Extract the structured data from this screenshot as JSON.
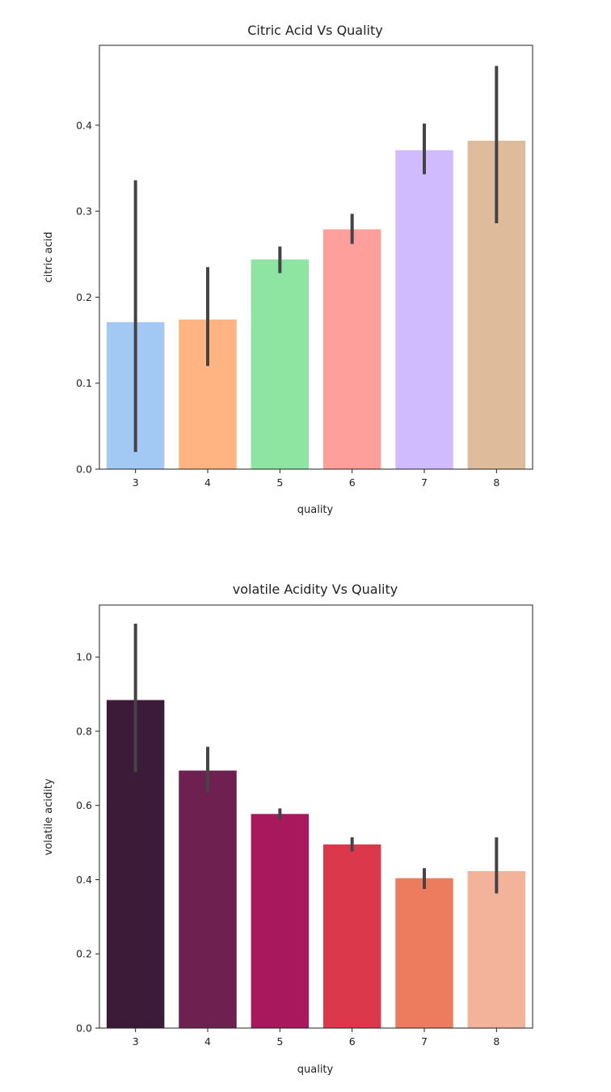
{
  "chart_data": [
    {
      "type": "bar",
      "title": "Citric Acid Vs Quality",
      "xlabel": "quality",
      "ylabel": "citric acid",
      "categories": [
        "3",
        "4",
        "5",
        "6",
        "7",
        "8"
      ],
      "values": [
        0.171,
        0.174,
        0.244,
        0.279,
        0.371,
        0.382
      ],
      "error_low": [
        0.02,
        0.12,
        0.228,
        0.262,
        0.343,
        0.286
      ],
      "error_high": [
        0.336,
        0.235,
        0.259,
        0.297,
        0.402,
        0.469
      ],
      "colors": [
        "#a1c9f4",
        "#ffb482",
        "#8de5a1",
        "#ff9f9b",
        "#d0bbff",
        "#debb9b"
      ],
      "ylim": [
        0,
        0.493
      ],
      "yticks": [
        0.0,
        0.1,
        0.2,
        0.3,
        0.4
      ],
      "ytick_labels": [
        "0.0",
        "0.1",
        "0.2",
        "0.3",
        "0.4"
      ],
      "grid": false
    },
    {
      "type": "bar",
      "title": "volatile Acidity Vs Quality",
      "xlabel": "quality",
      "ylabel": "volatile acidity",
      "categories": [
        "3",
        "4",
        "5",
        "6",
        "7",
        "8"
      ],
      "values": [
        0.884,
        0.694,
        0.577,
        0.495,
        0.404,
        0.423
      ],
      "error_low": [
        0.69,
        0.635,
        0.563,
        0.476,
        0.375,
        0.363
      ],
      "error_high": [
        1.09,
        0.758,
        0.592,
        0.514,
        0.431,
        0.514
      ],
      "colors": [
        "#3b1b38",
        "#6e2150",
        "#a7185d",
        "#dc384c",
        "#ed7b5e",
        "#f3b39a"
      ],
      "ylim": [
        0,
        1.14
      ],
      "yticks": [
        0.0,
        0.2,
        0.4,
        0.6,
        0.8,
        1.0
      ],
      "ytick_labels": [
        "0.0",
        "0.2",
        "0.4",
        "0.6",
        "0.8",
        "1.0"
      ],
      "grid": false
    }
  ]
}
